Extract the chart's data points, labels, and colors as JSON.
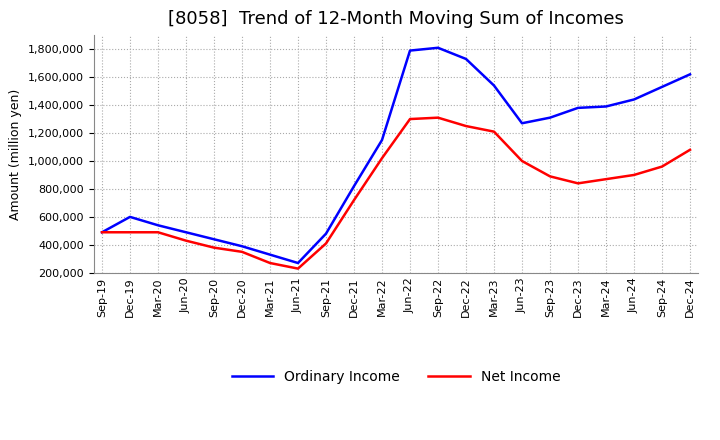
{
  "title": "[8058]  Trend of 12-Month Moving Sum of Incomes",
  "ylabel": "Amount (million yen)",
  "ylim": [
    200000,
    1900000
  ],
  "yticks": [
    200000,
    400000,
    600000,
    800000,
    1000000,
    1200000,
    1400000,
    1600000,
    1800000
  ],
  "background_color": "#ffffff",
  "grid_color": "#aaaaaa",
  "dates": [
    "Sep-19",
    "Dec-19",
    "Mar-20",
    "Jun-20",
    "Sep-20",
    "Dec-20",
    "Mar-21",
    "Jun-21",
    "Sep-21",
    "Dec-21",
    "Mar-22",
    "Jun-22",
    "Sep-22",
    "Dec-22",
    "Mar-23",
    "Jun-23",
    "Sep-23",
    "Dec-23",
    "Mar-24",
    "Jun-24",
    "Sep-24",
    "Dec-24"
  ],
  "ordinary_income": [
    490000,
    600000,
    540000,
    490000,
    440000,
    390000,
    330000,
    270000,
    480000,
    820000,
    1150000,
    1790000,
    1810000,
    1730000,
    1540000,
    1270000,
    1310000,
    1380000,
    1390000,
    1440000,
    1530000,
    1620000
  ],
  "net_income": [
    490000,
    490000,
    490000,
    430000,
    380000,
    350000,
    270000,
    230000,
    410000,
    720000,
    1020000,
    1300000,
    1310000,
    1250000,
    1210000,
    1000000,
    890000,
    840000,
    870000,
    900000,
    960000,
    1080000
  ],
  "ordinary_income_color": "#0000ff",
  "net_income_color": "#ff0000",
  "line_width": 1.8,
  "title_fontsize": 13,
  "label_fontsize": 9,
  "tick_fontsize": 8,
  "legend_labels": [
    "Ordinary Income",
    "Net Income"
  ]
}
